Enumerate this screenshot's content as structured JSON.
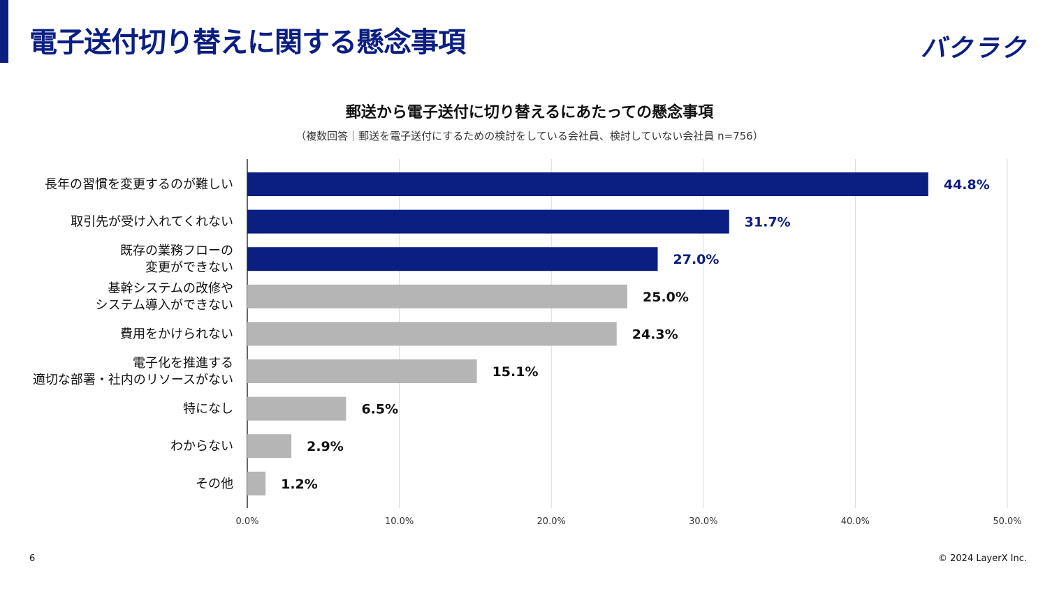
{
  "slide": {
    "title": "電子送付切り替えに関する懸念事項",
    "brand": "バクラク",
    "page_number": "6",
    "copyright": "© 2024 LayerX Inc."
  },
  "colors": {
    "accent": "#0b1e82",
    "highlight_bar": "#0b1e82",
    "default_bar": "#b5b5b5",
    "gridline": "#d9d9d9"
  },
  "chart_data": {
    "type": "bar",
    "orientation": "horizontal",
    "title": "郵送から電子送付に切り替えるにあたっての懸念事項",
    "subtitle": "（複数回答｜郵送を電子送付にするための検討をしている会社員、検討していない会社員 n=756）",
    "xlabel": "",
    "ylabel": "",
    "xlim": [
      0,
      50
    ],
    "grid": true,
    "categories": [
      "長年の習慣を変更するのが難しい",
      "取引先が受け入れてくれない",
      "既存の業務フローの\n変更ができない",
      "基幹システムの改修や\nシステム導入ができない",
      "費用をかけられない",
      "電子化を推進する\n適切な部署・社内のリソースがない",
      "特になし",
      "わからない",
      "その他"
    ],
    "values": [
      44.8,
      31.7,
      27.0,
      25.0,
      24.3,
      15.1,
      6.5,
      2.9,
      1.2
    ],
    "value_labels": [
      "44.8%",
      "31.7%",
      "27.0%",
      "25.0%",
      "24.3%",
      "15.1%",
      "6.5%",
      "2.9%",
      "1.2%"
    ],
    "highlighted": [
      true,
      true,
      true,
      false,
      false,
      false,
      false,
      false,
      false
    ],
    "ticks": [
      0,
      10,
      20,
      30,
      40,
      50
    ],
    "tick_labels": [
      "0.0%",
      "10.0%",
      "20.0%",
      "30.0%",
      "40.0%",
      "50.0%"
    ]
  }
}
